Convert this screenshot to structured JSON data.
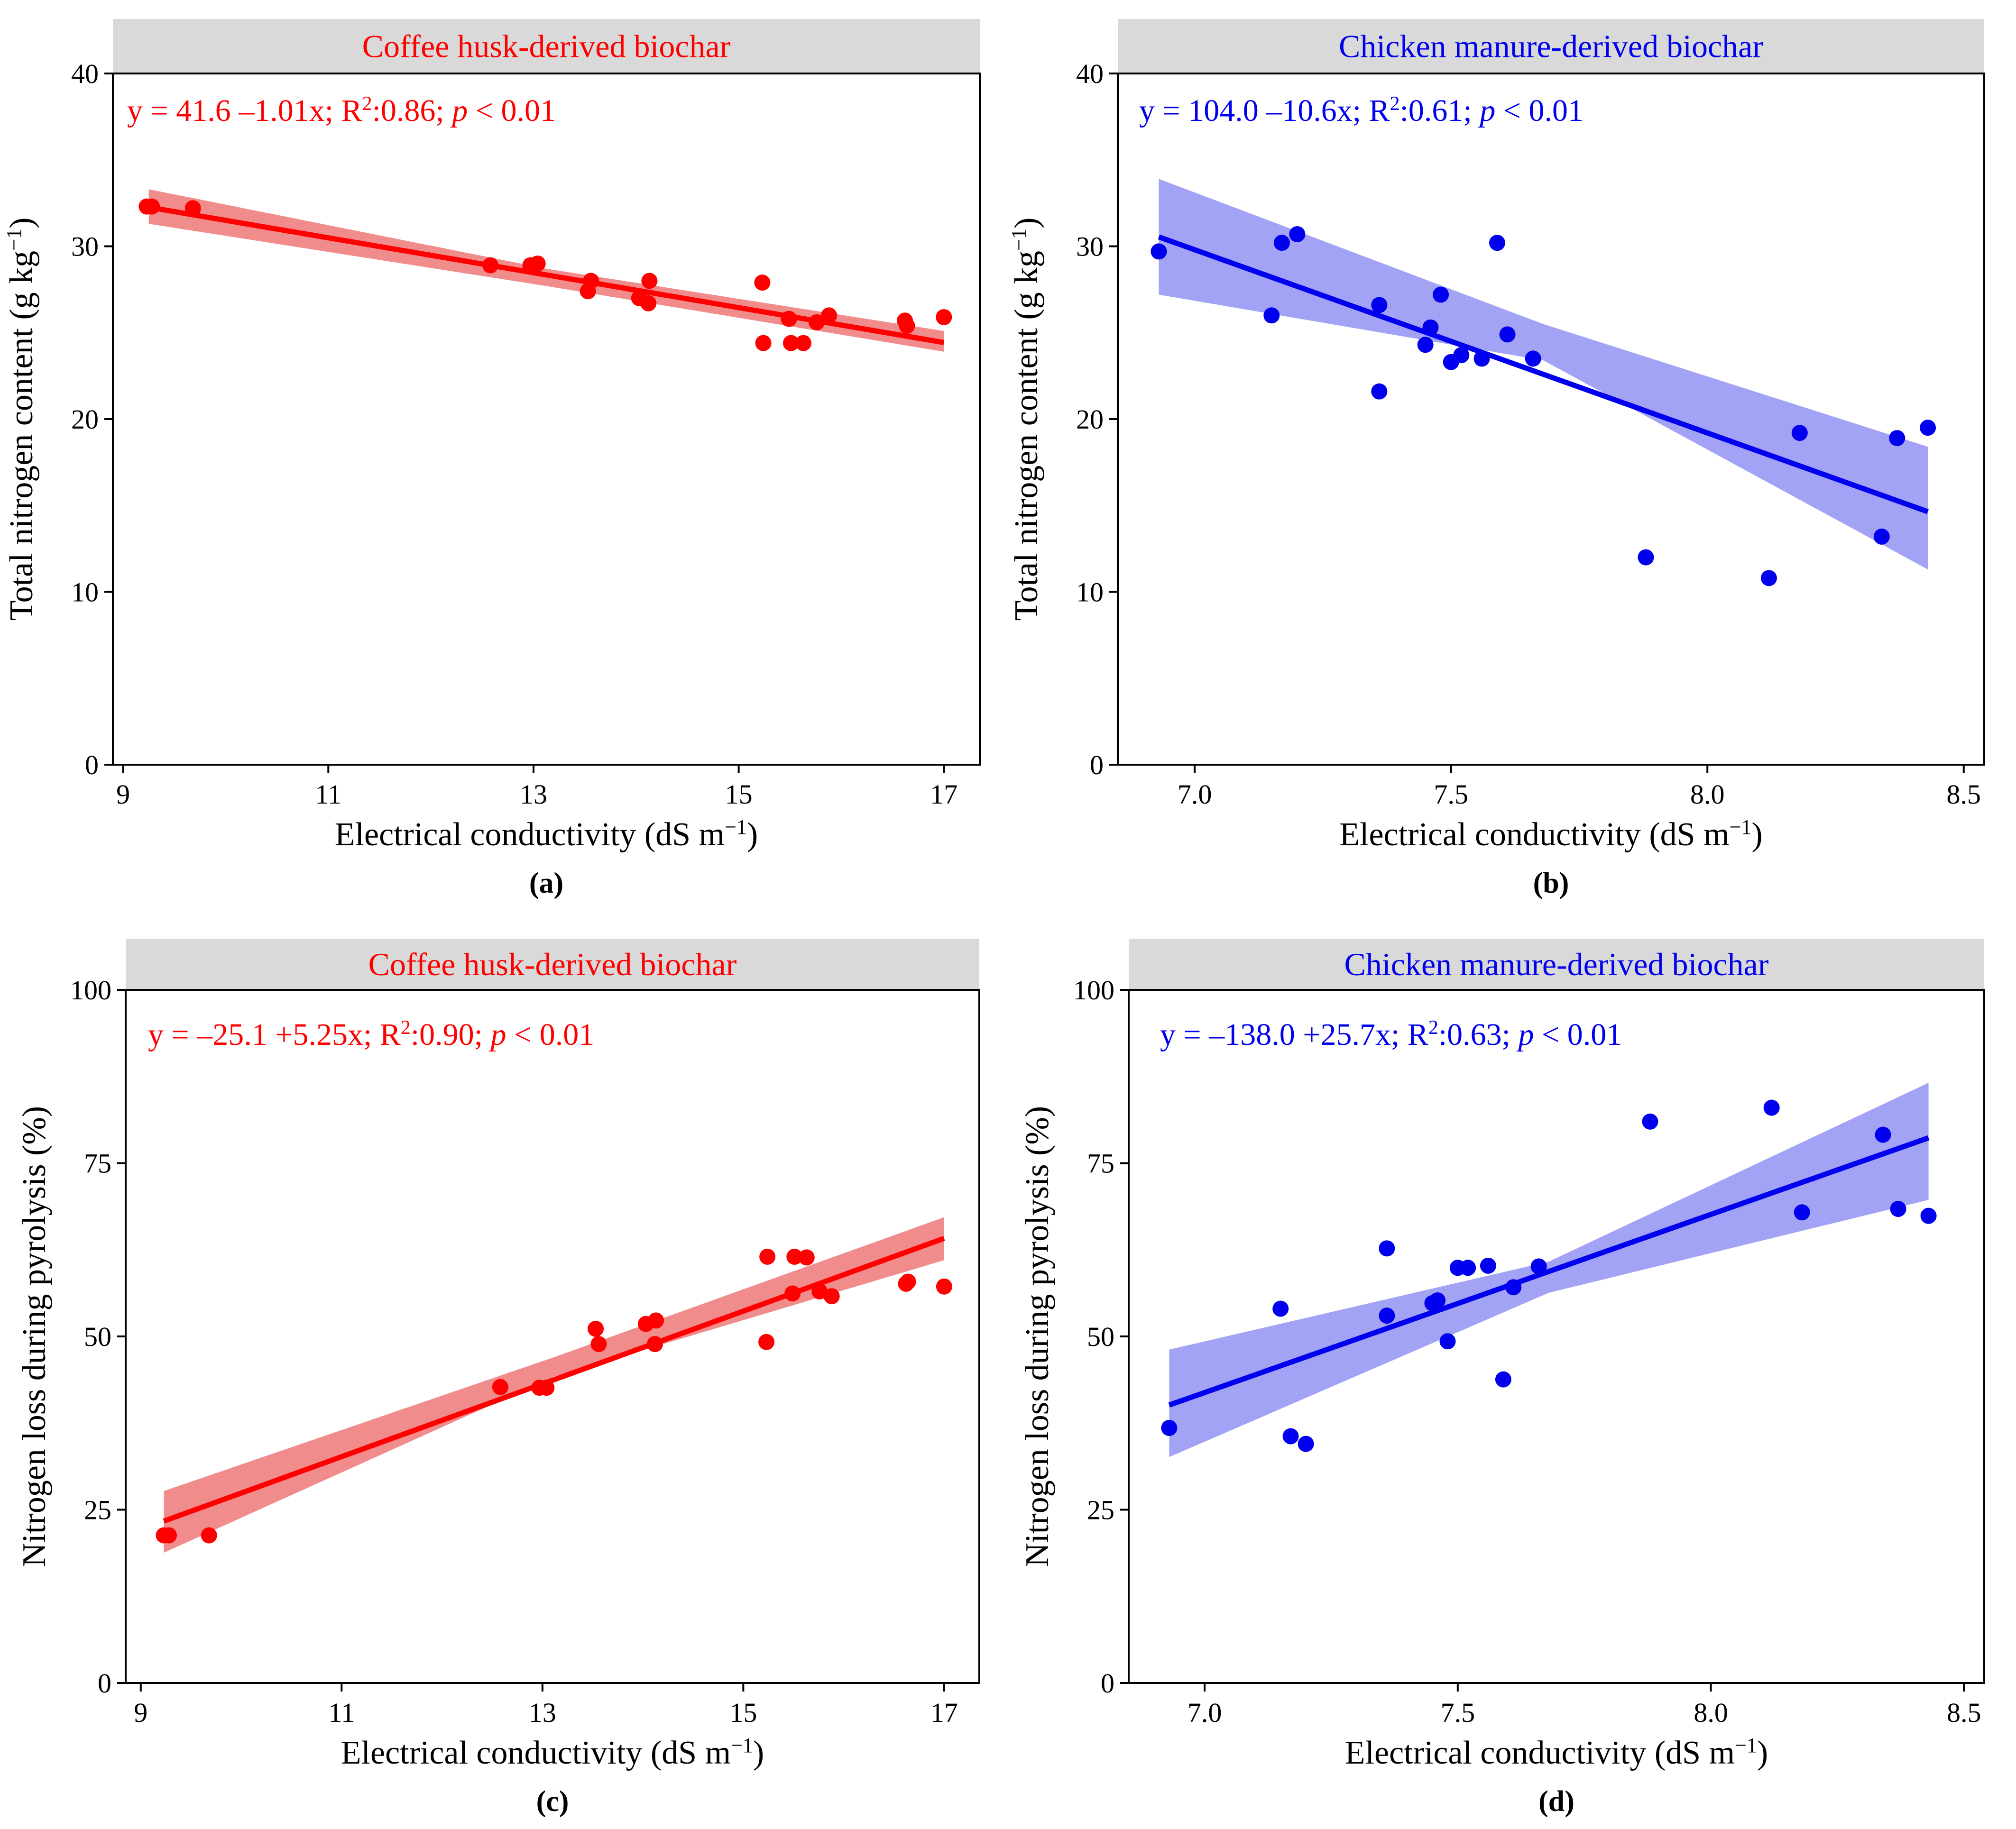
{
  "chart_data": [
    {
      "type": "scatter",
      "panel_label": "(a)",
      "title": "Coffee husk-derived biochar",
      "equation": {
        "prefix": "y = 41.6 –1.01x; R",
        "sup": "2",
        "mid": ":0.86; ",
        "p": "p",
        "suffix": " < 0.01"
      },
      "color": "#ff0000",
      "band_color": "#f08080",
      "xlabel": {
        "main": "Electrical conductivity (dS m",
        "sup": "−1",
        "end": ")"
      },
      "ylabel": {
        "main": "Total nitrogen content (g kg",
        "sup": "−1",
        "end": ")"
      },
      "xlim": [
        8.9,
        17.35
      ],
      "ylim": [
        0,
        40
      ],
      "xticks": [
        9,
        11,
        13,
        15,
        17
      ],
      "xtick_labels": [
        "9",
        "11",
        "13",
        "15",
        "17"
      ],
      "yticks": [
        0,
        10,
        20,
        30,
        40
      ],
      "ytick_labels": [
        "0",
        "10",
        "20",
        "30",
        "40"
      ],
      "fit": {
        "intercept": 41.6,
        "slope": -1.01,
        "x_range": [
          9.25,
          17.0
        ],
        "ci_lower": [
          31.3,
          27.7,
          23.9
        ],
        "ci_upper": [
          33.3,
          28.7,
          25.1
        ]
      },
      "points": [
        [
          9.23,
          32.3
        ],
        [
          9.28,
          32.3
        ],
        [
          9.68,
          32.2
        ],
        [
          12.58,
          28.9
        ],
        [
          12.97,
          28.9
        ],
        [
          13.04,
          29.0
        ],
        [
          13.53,
          27.4
        ],
        [
          13.56,
          28.0
        ],
        [
          14.03,
          27.0
        ],
        [
          14.12,
          26.7
        ],
        [
          14.13,
          28.0
        ],
        [
          15.23,
          27.9
        ],
        [
          15.24,
          24.4
        ],
        [
          15.49,
          25.8
        ],
        [
          15.51,
          24.4
        ],
        [
          15.63,
          24.4
        ],
        [
          15.76,
          25.6
        ],
        [
          15.88,
          26.0
        ],
        [
          16.62,
          25.7
        ],
        [
          16.64,
          25.4
        ],
        [
          17.0,
          25.9
        ]
      ]
    },
    {
      "type": "scatter",
      "panel_label": "(b)",
      "title": "Chicken manure-derived biochar",
      "equation": {
        "prefix": "y = 104.0 –10.6x; R",
        "sup": "2",
        "mid": ":0.61; ",
        "p": "p",
        "suffix": " < 0.01"
      },
      "color": "#0000ee",
      "band_color": "#9999f5",
      "xlabel": {
        "main": "Electrical conductivity (dS m",
        "sup": "−1",
        "end": ")"
      },
      "ylabel": {
        "main": "Total nitrogen content (g kg",
        "sup": "−1",
        "end": ")"
      },
      "xlim": [
        6.85,
        8.54
      ],
      "ylim": [
        0,
        40
      ],
      "xticks": [
        7.0,
        7.5,
        8.0,
        8.5
      ],
      "xtick_labels": [
        "7.0",
        "7.5",
        "8.0",
        "8.5"
      ],
      "yticks": [
        0,
        10,
        20,
        30,
        40
      ],
      "ytick_labels": [
        "0",
        "10",
        "20",
        "30",
        "40"
      ],
      "fit": {
        "intercept": 104.0,
        "slope": -10.6,
        "x_range": [
          6.93,
          8.43
        ],
        "ci_lower": [
          27.2,
          23.4,
          11.3
        ],
        "ci_upper": [
          33.9,
          25.5,
          18.4
        ]
      },
      "points": [
        [
          6.93,
          29.7
        ],
        [
          7.15,
          26.0
        ],
        [
          7.17,
          30.2
        ],
        [
          7.2,
          30.7
        ],
        [
          7.36,
          26.6
        ],
        [
          7.36,
          21.6
        ],
        [
          7.45,
          24.3
        ],
        [
          7.46,
          25.3
        ],
        [
          7.48,
          27.2
        ],
        [
          7.5,
          23.3
        ],
        [
          7.52,
          23.7
        ],
        [
          7.56,
          23.5
        ],
        [
          7.59,
          30.2
        ],
        [
          7.61,
          24.9
        ],
        [
          7.66,
          23.5
        ],
        [
          7.88,
          12.0
        ],
        [
          8.12,
          10.8
        ],
        [
          8.18,
          19.2
        ],
        [
          8.34,
          13.2
        ],
        [
          8.37,
          18.9
        ],
        [
          8.43,
          19.5
        ]
      ]
    },
    {
      "type": "scatter",
      "panel_label": "(c)",
      "title": "Coffee husk-derived biochar",
      "equation": {
        "prefix": "y = –25.1 +5.25x; R",
        "sup": "2",
        "mid": ":0.90; ",
        "p": "p",
        "suffix": " < 0.01"
      },
      "color": "#ff0000",
      "band_color": "#f08080",
      "xlabel": {
        "main": "Electrical conductivity (dS m",
        "sup": "−1",
        "end": ")"
      },
      "ylabel": {
        "main": "Nitrogen loss during pyrolysis (%)",
        "sup": "",
        "end": ""
      },
      "xlim": [
        8.85,
        17.35
      ],
      "ylim": [
        0,
        100
      ],
      "xticks": [
        9,
        11,
        13,
        15,
        17
      ],
      "xtick_labels": [
        "9",
        "11",
        "13",
        "15",
        "17"
      ],
      "yticks": [
        0,
        25,
        50,
        75,
        100
      ],
      "ytick_labels": [
        "0",
        "25",
        "50",
        "75",
        "100"
      ],
      "fit": {
        "intercept": -25.1,
        "slope": 5.25,
        "x_range": [
          9.23,
          17.0
        ],
        "ci_lower": [
          18.8,
          44.2,
          61.0
        ],
        "ci_upper": [
          27.7,
          47.0,
          67.2
        ]
      },
      "points": [
        [
          9.23,
          21.3
        ],
        [
          9.28,
          21.3
        ],
        [
          9.68,
          21.3
        ],
        [
          12.58,
          42.7
        ],
        [
          12.97,
          42.6
        ],
        [
          13.04,
          42.6
        ],
        [
          13.53,
          51.1
        ],
        [
          13.56,
          48.9
        ],
        [
          14.03,
          51.8
        ],
        [
          14.12,
          48.9
        ],
        [
          14.13,
          52.3
        ],
        [
          15.23,
          49.2
        ],
        [
          15.24,
          61.5
        ],
        [
          15.49,
          56.2
        ],
        [
          15.51,
          61.5
        ],
        [
          15.63,
          61.4
        ],
        [
          15.76,
          56.5
        ],
        [
          15.88,
          55.8
        ],
        [
          16.62,
          57.6
        ],
        [
          16.64,
          57.9
        ],
        [
          17.0,
          57.2
        ]
      ]
    },
    {
      "type": "scatter",
      "panel_label": "(d)",
      "title": "Chicken manure-derived biochar",
      "equation": {
        "prefix": "y = –138.0 +25.7x; R",
        "sup": "2",
        "mid": ":0.63; ",
        "p": "p",
        "suffix": " < 0.01"
      },
      "color": "#0000ee",
      "band_color": "#9999f5",
      "xlabel": {
        "main": "Electrical conductivity (dS m",
        "sup": "−1",
        "end": ")"
      },
      "ylabel": {
        "main": "Nitrogen loss during pyrolysis (%)",
        "sup": "",
        "end": ""
      },
      "xlim": [
        6.85,
        8.54
      ],
      "ylim": [
        0,
        100
      ],
      "xticks": [
        7.0,
        7.5,
        8.0,
        8.5
      ],
      "xtick_labels": [
        "7.0",
        "7.5",
        "8.0",
        "8.5"
      ],
      "yticks": [
        0,
        25,
        50,
        75,
        100
      ],
      "ytick_labels": [
        "0",
        "25",
        "50",
        "75",
        "100"
      ],
      "fit": {
        "intercept": -138.0,
        "slope": 25.7,
        "x_range": [
          6.93,
          8.43
        ],
        "ci_lower": [
          32.6,
          56.3,
          69.7
        ],
        "ci_upper": [
          48.1,
          60.8,
          86.6
        ]
      },
      "points": [
        [
          6.93,
          36.8
        ],
        [
          7.15,
          54.0
        ],
        [
          7.17,
          35.6
        ],
        [
          7.2,
          34.5
        ],
        [
          7.36,
          62.7
        ],
        [
          7.36,
          53.0
        ],
        [
          7.45,
          54.8
        ],
        [
          7.46,
          55.2
        ],
        [
          7.48,
          49.3
        ],
        [
          7.5,
          59.9
        ],
        [
          7.52,
          59.9
        ],
        [
          7.56,
          60.2
        ],
        [
          7.59,
          43.8
        ],
        [
          7.61,
          57.1
        ],
        [
          7.66,
          60.1
        ],
        [
          7.88,
          81.0
        ],
        [
          8.12,
          83.0
        ],
        [
          8.18,
          67.9
        ],
        [
          8.34,
          79.1
        ],
        [
          8.37,
          68.4
        ],
        [
          8.43,
          67.4
        ]
      ]
    }
  ]
}
